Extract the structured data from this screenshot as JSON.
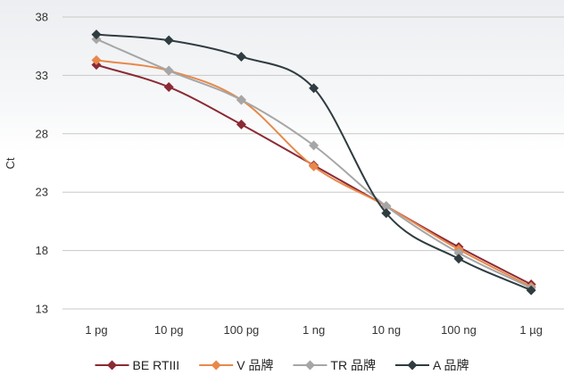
{
  "chart_data": {
    "type": "line",
    "title": "",
    "xlabel": "",
    "ylabel": "Ct",
    "ylim": [
      13,
      38
    ],
    "yticks": [
      13,
      18,
      23,
      28,
      33,
      38
    ],
    "grid": "horizontal",
    "legend": "bottom",
    "smooth": true,
    "categories": [
      "1 pg",
      "10 pg",
      "100 pg",
      "1 ng",
      "10 ng",
      "100 ng",
      "1 µg"
    ],
    "series": [
      {
        "name": "BE RTIII",
        "color": "#8b2a34",
        "marker": "diamond",
        "values": [
          33.9,
          32.0,
          28.8,
          25.3,
          21.8,
          18.3,
          15.1
        ]
      },
      {
        "name": "V 品牌",
        "color": "#e8884a",
        "marker": "diamond",
        "values": [
          34.3,
          33.4,
          30.9,
          25.2,
          21.8,
          18.1,
          14.9
        ]
      },
      {
        "name": "TR 品牌",
        "color": "#a6a6a6",
        "marker": "diamond",
        "values": [
          36.1,
          33.4,
          30.9,
          27.0,
          21.8,
          17.8,
          14.8
        ]
      },
      {
        "name": "A 品牌",
        "color": "#2f3c40",
        "marker": "diamond",
        "values": [
          36.5,
          36.0,
          34.6,
          31.9,
          21.2,
          17.3,
          14.6
        ]
      }
    ]
  }
}
